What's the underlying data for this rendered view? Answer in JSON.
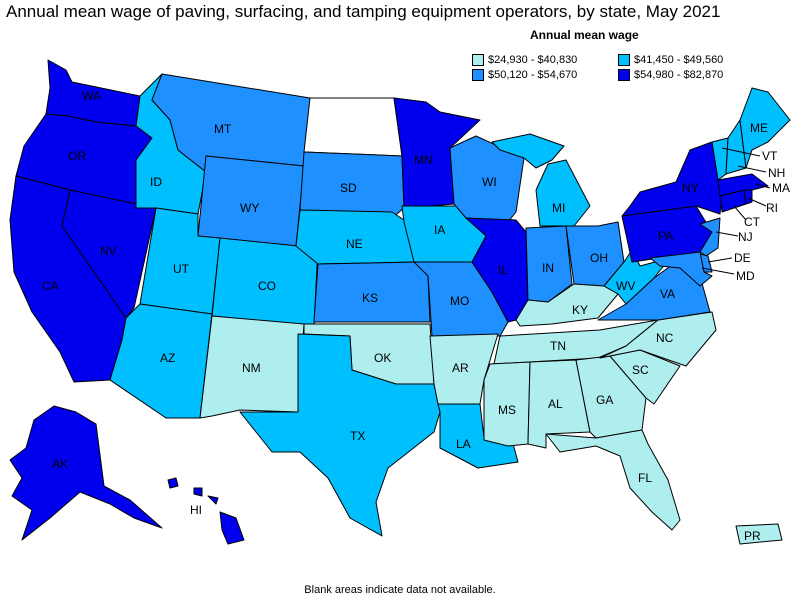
{
  "title": "Annual mean wage of paving, surfacing, and tamping equipment operators, by state, May 2021",
  "legend": {
    "title": "Annual mean wage",
    "items": [
      {
        "label": "$24,930 - $40,830",
        "color": "#aeeeee"
      },
      {
        "label": "$41,450 - $49,560",
        "color": "#00bfff"
      },
      {
        "label": "$50,120 - $54,670",
        "color": "#1e90ff"
      },
      {
        "label": "$54,980 - $82,870",
        "color": "#0000ee"
      }
    ]
  },
  "footnote": "Blank areas indicate data not available.",
  "colors": {
    "c1": "#aeeeee",
    "c2": "#00bfff",
    "c3": "#1e90ff",
    "c4": "#0000ee",
    "na": "#ffffff"
  },
  "states": {
    "WA": "c4",
    "OR": "c4",
    "CA": "c4",
    "NV": "c4",
    "AK": "c4",
    "HI": "c4",
    "ID": "c2",
    "MT": "c3",
    "WY": "c3",
    "UT": "c2",
    "CO": "c2",
    "AZ": "c2",
    "NM": "c1",
    "ND": "na",
    "SD": "c3",
    "NE": "c2",
    "KS": "c3",
    "OK": "c1",
    "TX": "c2",
    "MN": "c4",
    "IA": "c2",
    "MO": "c3",
    "AR": "c1",
    "LA": "c2",
    "WI": "c3",
    "IL": "c4",
    "MI": "c2",
    "IN": "c3",
    "OH": "c3",
    "KY": "c1",
    "TN": "c1",
    "MS": "c1",
    "AL": "c1",
    "GA": "c1",
    "FL": "c1",
    "SC": "c1",
    "NC": "c1",
    "VA": "c3",
    "WV": "c2",
    "PA": "c4",
    "NY": "c4",
    "ME": "c2",
    "VT": "c2",
    "NH": "c2",
    "MA": "c4",
    "RI": "c4",
    "CT": "c4",
    "NJ": "c3",
    "DE": "c3",
    "MD": "c3",
    "PR": "c1"
  }
}
